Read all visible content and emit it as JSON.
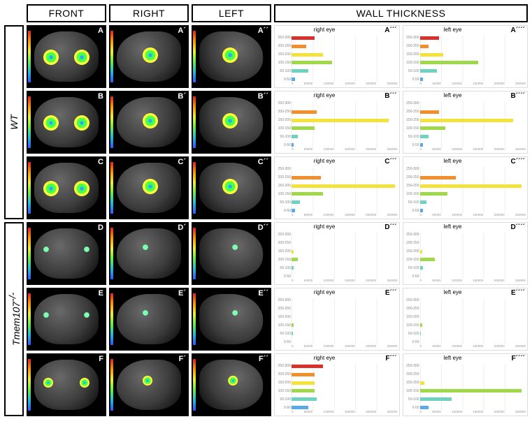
{
  "columns": {
    "front": "FRONT",
    "right": "RIGHT",
    "left": "LEFT",
    "wall": "WALL THICKNESS"
  },
  "rowgroups": {
    "wt": "WT",
    "mut": "Tmem107",
    "mut_sup": "-/-"
  },
  "palette": {
    "bins": [
      "250-300",
      "200-250",
      "150-200",
      "100-150",
      "50-100",
      "0-50"
    ],
    "colors": [
      "#d9302a",
      "#f28e2b",
      "#f2e23a",
      "#9fd94a",
      "#6fd2c0",
      "#5aa9e6"
    ]
  },
  "xticks": [
    "0",
    "50000",
    "100000",
    "150000",
    "200000",
    "250000"
  ],
  "rows": [
    {
      "group": "WT",
      "id": "A",
      "labels": {
        "front": "A",
        "right": "A´",
        "left": "A´´",
        "wall_r": "A´´´",
        "wall_l": "A´´´´"
      },
      "eye_size": "normal",
      "wall": {
        "right": {
          "title": "right eye",
          "vals": [
            22,
            14,
            30,
            38,
            16,
            3
          ]
        },
        "left": {
          "title": "left eye",
          "vals": [
            18,
            8,
            22,
            55,
            16,
            3
          ]
        }
      }
    },
    {
      "group": "WT",
      "id": "B",
      "labels": {
        "front": "B",
        "right": "B´",
        "left": "B´´",
        "wall_r": "B´´´",
        "wall_l": "B´´´´"
      },
      "eye_size": "normal",
      "wall": {
        "right": {
          "title": "right eye",
          "vals": [
            0,
            24,
            92,
            22,
            6,
            2
          ]
        },
        "left": {
          "title": "left eye",
          "vals": [
            0,
            18,
            88,
            24,
            8,
            3
          ]
        }
      }
    },
    {
      "group": "WT",
      "id": "C",
      "labels": {
        "front": "C",
        "right": "C´",
        "left": "C´´",
        "wall_r": "C´´´",
        "wall_l": "C´´´´"
      },
      "eye_size": "normal",
      "wall": {
        "right": {
          "title": "right eye",
          "vals": [
            0,
            28,
            98,
            30,
            8,
            3
          ]
        },
        "left": {
          "title": "left eye",
          "vals": [
            0,
            34,
            96,
            26,
            6,
            3
          ]
        }
      }
    },
    {
      "group": "Tmem107",
      "id": "D",
      "labels": {
        "front": "D",
        "right": "D´",
        "left": "D´´",
        "wall_r": "D´´´",
        "wall_l": "D´´´´"
      },
      "eye_size": "tiny",
      "wall": {
        "right": {
          "title": "right eye",
          "vals": [
            0,
            0,
            2,
            6,
            2,
            0
          ]
        },
        "left": {
          "title": "left eye",
          "vals": [
            0,
            0,
            2,
            14,
            3,
            0
          ]
        }
      }
    },
    {
      "group": "Tmem107",
      "id": "E",
      "labels": {
        "front": "E",
        "right": "E´",
        "left": "E´´",
        "wall_r": "E´´´",
        "wall_l": "E´´´´"
      },
      "eye_size": "tiny",
      "wall": {
        "right": {
          "title": "right eye",
          "vals": [
            0,
            0,
            0,
            2,
            1,
            0
          ]
        },
        "left": {
          "title": "left eye",
          "vals": [
            0,
            0,
            0,
            2,
            1,
            0
          ]
        }
      }
    },
    {
      "group": "Tmem107",
      "id": "F",
      "labels": {
        "front": "F",
        "right": "F´",
        "left": "F´´",
        "wall_r": "F´´´",
        "wall_l": "F´´´´"
      },
      "eye_size": "small",
      "wall": {
        "right": {
          "title": "right eye",
          "vals": [
            30,
            22,
            22,
            22,
            24,
            16
          ]
        },
        "left": {
          "title": "left eye",
          "vals": [
            0,
            0,
            4,
            96,
            30,
            8
          ]
        }
      }
    }
  ]
}
